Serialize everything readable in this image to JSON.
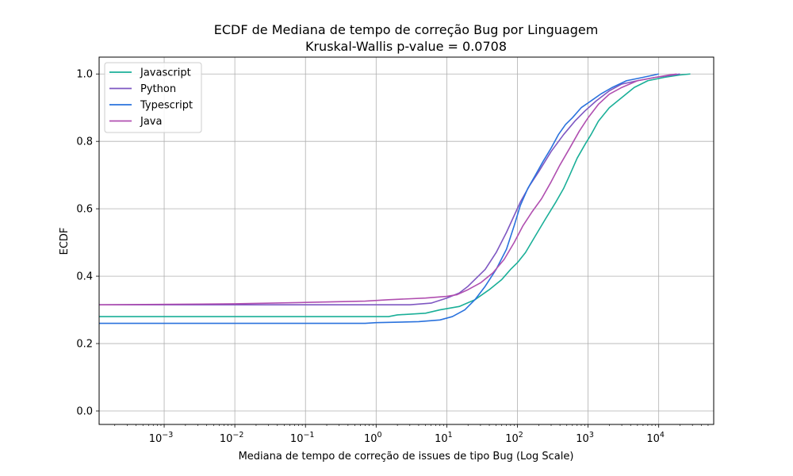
{
  "chart_data": {
    "type": "line",
    "title": "ECDF de Mediana de tempo de correção Bug por Linguagem",
    "subtitle": "Kruskal-Wallis p-value = 0.0708",
    "xlabel": "Mediana de tempo de correção de issues de tipo Bug (Log Scale)",
    "ylabel": "ECDF",
    "x_scale": "log",
    "xlim": [
      0.00012,
      60000
    ],
    "ylim": [
      -0.04,
      1.05
    ],
    "x_ticks": [
      {
        "value": 0.001,
        "base": "10",
        "exp": "−3"
      },
      {
        "value": 0.01,
        "base": "10",
        "exp": "−2"
      },
      {
        "value": 0.1,
        "base": "10",
        "exp": "−1"
      },
      {
        "value": 1,
        "base": "10",
        "exp": "0"
      },
      {
        "value": 10,
        "base": "10",
        "exp": "1"
      },
      {
        "value": 100,
        "base": "10",
        "exp": "2"
      },
      {
        "value": 1000,
        "base": "10",
        "exp": "3"
      },
      {
        "value": 10000,
        "base": "10",
        "exp": "4"
      }
    ],
    "y_ticks": [
      {
        "value": 0.0,
        "label": "0.0"
      },
      {
        "value": 0.2,
        "label": "0.2"
      },
      {
        "value": 0.4,
        "label": "0.4"
      },
      {
        "value": 0.6,
        "label": "0.6"
      },
      {
        "value": 0.8,
        "label": "0.8"
      },
      {
        "value": 1.0,
        "label": "1.0"
      }
    ],
    "grid": true,
    "legend_position": "top-left",
    "series": [
      {
        "name": "Javascript",
        "color": "#1aaf98",
        "points": [
          [
            0.00012,
            0.28
          ],
          [
            1.5,
            0.28
          ],
          [
            2,
            0.285
          ],
          [
            5,
            0.29
          ],
          [
            8,
            0.3
          ],
          [
            15,
            0.31
          ],
          [
            25,
            0.33
          ],
          [
            40,
            0.36
          ],
          [
            60,
            0.39
          ],
          [
            80,
            0.42
          ],
          [
            100,
            0.44
          ],
          [
            130,
            0.47
          ],
          [
            180,
            0.52
          ],
          [
            250,
            0.57
          ],
          [
            350,
            0.62
          ],
          [
            450,
            0.66
          ],
          [
            550,
            0.7
          ],
          [
            700,
            0.75
          ],
          [
            900,
            0.79
          ],
          [
            1100,
            0.82
          ],
          [
            1400,
            0.86
          ],
          [
            2000,
            0.9
          ],
          [
            3000,
            0.93
          ],
          [
            4500,
            0.96
          ],
          [
            7000,
            0.98
          ],
          [
            12000,
            0.99
          ],
          [
            20000,
            0.997
          ],
          [
            28000,
            1.0
          ]
        ]
      },
      {
        "name": "Python",
        "color": "#7e57c2",
        "points": [
          [
            0.00012,
            0.315
          ],
          [
            3,
            0.315
          ],
          [
            6,
            0.32
          ],
          [
            10,
            0.335
          ],
          [
            15,
            0.35
          ],
          [
            20,
            0.37
          ],
          [
            25,
            0.39
          ],
          [
            35,
            0.42
          ],
          [
            50,
            0.47
          ],
          [
            70,
            0.53
          ],
          [
            90,
            0.58
          ],
          [
            110,
            0.62
          ],
          [
            150,
            0.67
          ],
          [
            200,
            0.71
          ],
          [
            300,
            0.77
          ],
          [
            450,
            0.82
          ],
          [
            650,
            0.86
          ],
          [
            900,
            0.89
          ],
          [
            1300,
            0.92
          ],
          [
            2000,
            0.95
          ],
          [
            3000,
            0.97
          ],
          [
            5000,
            0.98
          ],
          [
            9000,
            0.99
          ],
          [
            14000,
            0.995
          ],
          [
            20000,
            1.0
          ]
        ]
      },
      {
        "name": "Typescript",
        "color": "#2a72dd",
        "points": [
          [
            0.00012,
            0.26
          ],
          [
            0.7,
            0.26
          ],
          [
            1,
            0.262
          ],
          [
            4,
            0.265
          ],
          [
            8,
            0.27
          ],
          [
            12,
            0.28
          ],
          [
            18,
            0.3
          ],
          [
            25,
            0.33
          ],
          [
            35,
            0.37
          ],
          [
            50,
            0.42
          ],
          [
            70,
            0.48
          ],
          [
            90,
            0.55
          ],
          [
            110,
            0.61
          ],
          [
            140,
            0.66
          ],
          [
            180,
            0.7
          ],
          [
            230,
            0.74
          ],
          [
            300,
            0.78
          ],
          [
            380,
            0.82
          ],
          [
            480,
            0.85
          ],
          [
            600,
            0.87
          ],
          [
            800,
            0.9
          ],
          [
            1100,
            0.92
          ],
          [
            1500,
            0.94
          ],
          [
            2200,
            0.96
          ],
          [
            3500,
            0.98
          ],
          [
            6000,
            0.99
          ],
          [
            10000,
            1.0
          ]
        ]
      },
      {
        "name": "Java",
        "color": "#b04fb0",
        "points": [
          [
            0.00012,
            0.315
          ],
          [
            0.01,
            0.318
          ],
          [
            0.1,
            0.322
          ],
          [
            0.7,
            0.326
          ],
          [
            1.5,
            0.33
          ],
          [
            5,
            0.335
          ],
          [
            10,
            0.34
          ],
          [
            14,
            0.345
          ],
          [
            20,
            0.36
          ],
          [
            30,
            0.38
          ],
          [
            45,
            0.41
          ],
          [
            65,
            0.45
          ],
          [
            90,
            0.5
          ],
          [
            120,
            0.55
          ],
          [
            160,
            0.59
          ],
          [
            220,
            0.63
          ],
          [
            300,
            0.68
          ],
          [
            400,
            0.73
          ],
          [
            550,
            0.78
          ],
          [
            750,
            0.83
          ],
          [
            1000,
            0.87
          ],
          [
            1400,
            0.91
          ],
          [
            2000,
            0.94
          ],
          [
            3000,
            0.96
          ],
          [
            5000,
            0.98
          ],
          [
            9000,
            0.99
          ],
          [
            14000,
            0.997
          ],
          [
            18000,
            1.0
          ]
        ]
      }
    ]
  }
}
